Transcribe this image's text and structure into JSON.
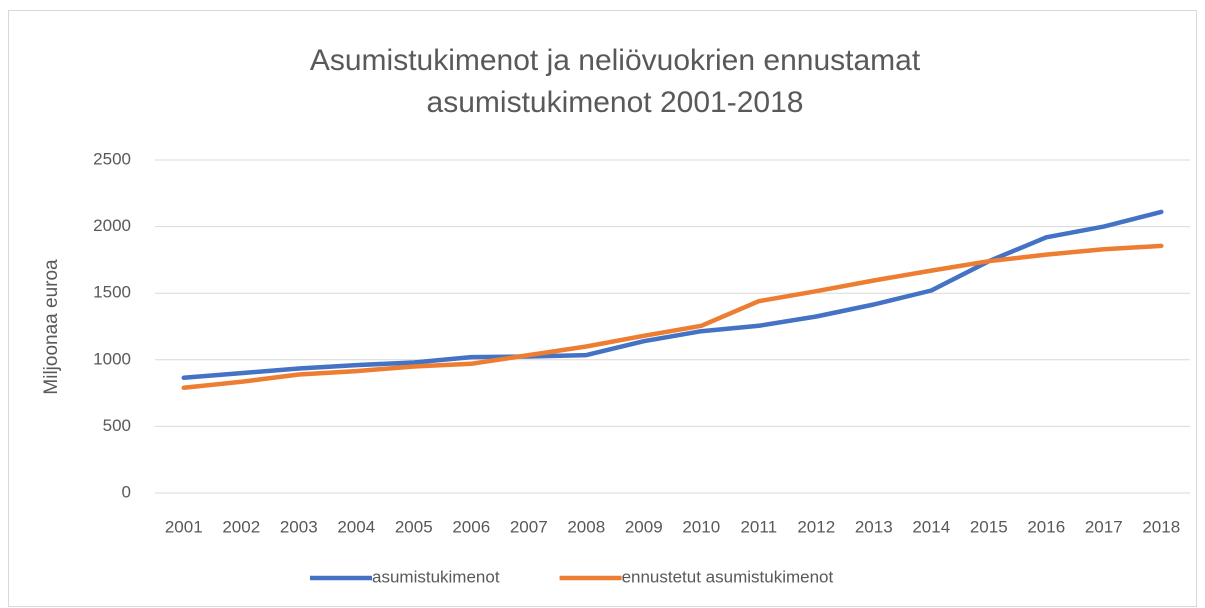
{
  "chart_data": {
    "type": "line",
    "title": "Asumistukimenot ja neliövuokrien ennustamat asumistukimenot 2001-2018",
    "y_label": "Miljoonaa euroa",
    "categories": [
      "2001",
      "2002",
      "2003",
      "2004",
      "2005",
      "2006",
      "2007",
      "2008",
      "2009",
      "2010",
      "2011",
      "2012",
      "2013",
      "2014",
      "2015",
      "2016",
      "2017",
      "2018"
    ],
    "series": [
      {
        "name": "asumistukimenot",
        "color": "#4472c4",
        "values": [
          865,
          900,
          935,
          960,
          980,
          1020,
          1025,
          1035,
          1140,
          1215,
          1255,
          1325,
          1415,
          1520,
          1740,
          1920,
          2000,
          2110
        ]
      },
      {
        "name": "ennustetut asumistukimenot",
        "color": "#ed7d31",
        "values": [
          790,
          835,
          890,
          915,
          950,
          970,
          1035,
          1100,
          1180,
          1255,
          1440,
          1515,
          1595,
          1670,
          1740,
          1790,
          1830,
          1855
        ]
      }
    ],
    "ylim": [
      0,
      2500
    ],
    "yticks": [
      0,
      500,
      1000,
      1500,
      2000,
      2500
    ],
    "grid": true,
    "legend": "bottom"
  }
}
